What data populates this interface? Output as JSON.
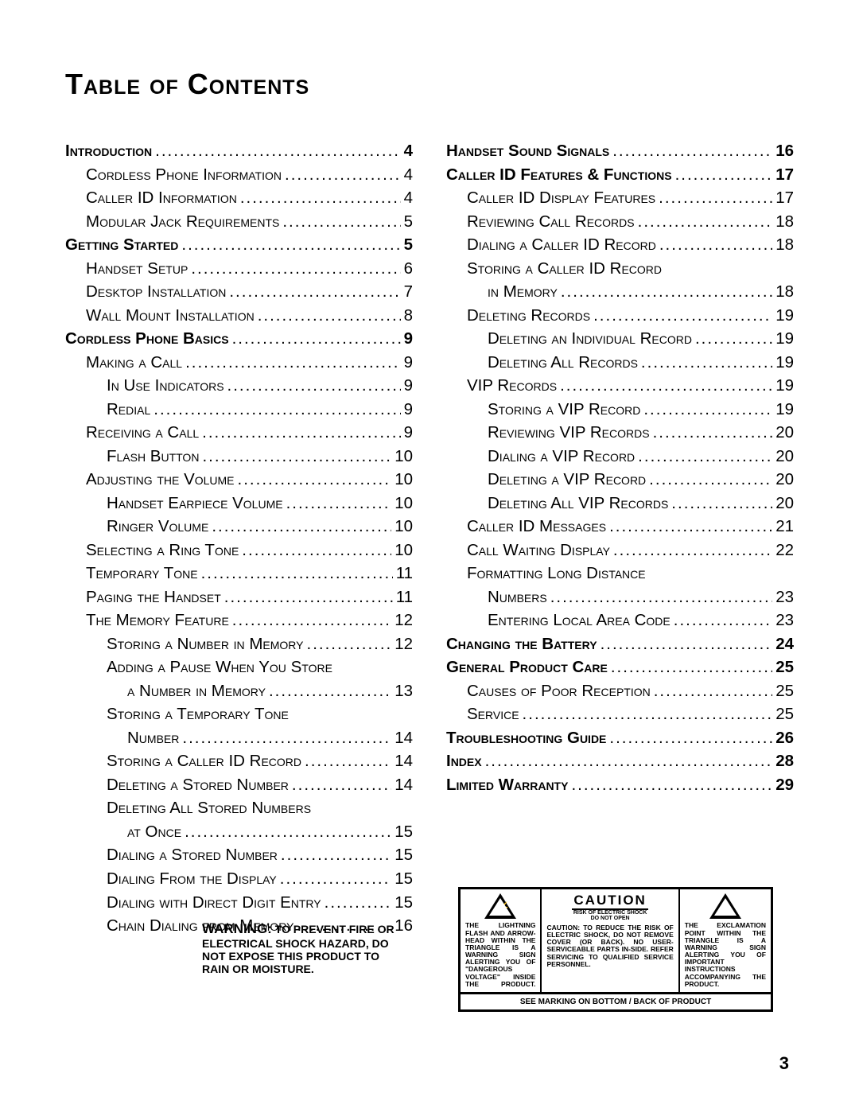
{
  "title": "Table of Contents",
  "page_number": "3",
  "toc_left": [
    {
      "level": 0,
      "label": "Introduction",
      "page": "4"
    },
    {
      "level": 1,
      "label": "Cordless Phone Information",
      "page": "4"
    },
    {
      "level": 1,
      "label": "Caller ID Information",
      "page": "4"
    },
    {
      "level": 1,
      "label": "Modular Jack Requirements",
      "page": "5"
    },
    {
      "level": 0,
      "label": "Getting Started",
      "page": "5"
    },
    {
      "level": 1,
      "label": "Handset Setup",
      "page": "6"
    },
    {
      "level": 1,
      "label": "Desktop Installation",
      "page": "7"
    },
    {
      "level": 1,
      "label": "Wall Mount Installation",
      "page": "8"
    },
    {
      "level": 0,
      "label": "Cordless Phone Basics",
      "page": "9"
    },
    {
      "level": 1,
      "label": "Making a Call",
      "page": "9"
    },
    {
      "level": 2,
      "label": "In Use Indicators",
      "page": "9"
    },
    {
      "level": 2,
      "label": "Redial",
      "page": "9"
    },
    {
      "level": 1,
      "label": "Receiving a Call",
      "page": "9"
    },
    {
      "level": 2,
      "label": "Flash Button",
      "page": "10"
    },
    {
      "level": 1,
      "label": "Adjusting the Volume",
      "page": "10"
    },
    {
      "level": 2,
      "label": "Handset Earpiece Volume",
      "page": "10"
    },
    {
      "level": 2,
      "label": "Ringer Volume",
      "page": "10"
    },
    {
      "level": 1,
      "label": "Selecting a Ring Tone",
      "page": "10"
    },
    {
      "level": 1,
      "label": "Temporary Tone",
      "page": "11"
    },
    {
      "level": 1,
      "label": "Paging the Handset",
      "page": "11"
    },
    {
      "level": 1,
      "label": "The Memory Feature",
      "page": "12"
    },
    {
      "level": 2,
      "label": "Storing a Number in Memory",
      "page": "12"
    },
    {
      "level": 2,
      "label": "Adding a Pause When You Store",
      "cont": true
    },
    {
      "level": 3,
      "label": "a Number in Memory",
      "page": "13"
    },
    {
      "level": 2,
      "label": "Storing a Temporary Tone",
      "cont": true
    },
    {
      "level": 3,
      "label": "Number",
      "page": "14"
    },
    {
      "level": 2,
      "label": "Storing a Caller ID Record",
      "page": "14"
    },
    {
      "level": 2,
      "label": "Deleting a Stored Number",
      "page": "14"
    },
    {
      "level": 2,
      "label": "Deleting All Stored Numbers",
      "cont": true
    },
    {
      "level": 3,
      "label": "at Once",
      "page": "15"
    },
    {
      "level": 2,
      "label": "Dialing a Stored Number",
      "page": "15"
    },
    {
      "level": 2,
      "label": "Dialing From the Display",
      "page": "15"
    },
    {
      "level": 2,
      "label": "Dialing with Direct Digit Entry",
      "page": "15"
    },
    {
      "level": 2,
      "label": "Chain Dialing from Memory",
      "page": "16"
    }
  ],
  "toc_right": [
    {
      "level": 0,
      "label": "Handset Sound Signals",
      "page": "16"
    },
    {
      "level": 0,
      "label": "Caller ID Features & Functions",
      "page": "17"
    },
    {
      "level": 1,
      "label": "Caller ID Display Features",
      "page": "17"
    },
    {
      "level": 1,
      "label": "Reviewing Call Records",
      "page": "18"
    },
    {
      "level": 1,
      "label": "Dialing a Caller ID Record",
      "page": "18"
    },
    {
      "level": 1,
      "label": "Storing a Caller ID Record",
      "cont": true
    },
    {
      "level": 2,
      "label": "in Memory",
      "page": "18"
    },
    {
      "level": 1,
      "label": "Deleting Records",
      "page": "19"
    },
    {
      "level": 2,
      "label": "Deleting an Individual Record",
      "page": "19"
    },
    {
      "level": 2,
      "label": "Deleting All Records",
      "page": "19"
    },
    {
      "level": 1,
      "label": "VIP Records",
      "page": "19"
    },
    {
      "level": 2,
      "label": "Storing a VIP Record",
      "page": "19"
    },
    {
      "level": 2,
      "label": "Reviewing VIP Records",
      "page": "20"
    },
    {
      "level": 2,
      "label": "Dialing a VIP Record",
      "page": "20"
    },
    {
      "level": 2,
      "label": "Deleting a VIP Record",
      "page": "20"
    },
    {
      "level": 2,
      "label": "Deleting All VIP Records",
      "page": "20"
    },
    {
      "level": 1,
      "label": "Caller ID Messages",
      "page": "21"
    },
    {
      "level": 1,
      "label": "Call Waiting Display",
      "page": "22"
    },
    {
      "level": 1,
      "label": "Formatting Long Distance",
      "cont": true
    },
    {
      "level": 2,
      "label": "Numbers",
      "page": "23"
    },
    {
      "level": 2,
      "label": "Entering Local Area Code",
      "page": "23"
    },
    {
      "level": 0,
      "label": "Changing the Battery",
      "page": "24"
    },
    {
      "level": 0,
      "label": "General Product Care",
      "page": "25"
    },
    {
      "level": 1,
      "label": "Causes of Poor Reception",
      "page": "25"
    },
    {
      "level": 1,
      "label": "Service",
      "page": "25"
    },
    {
      "level": 0,
      "label": "Troubleshooting Guide",
      "page": "26"
    },
    {
      "level": 0,
      "label": "Index",
      "page": "28"
    },
    {
      "level": 0,
      "label": "Limited Warranty",
      "page": "29"
    }
  ],
  "warning": {
    "lead": "WARNING:",
    "body": "TO PREVENT FIRE OR ELECTRICAL SHOCK HAZARD, DO NOT EXPOSE THIS PRODUCT TO RAIN OR MOISTURE."
  },
  "caution": {
    "word": "CAUTION",
    "sub1": "RISK OF ELECTRIC SHOCK",
    "sub2": "DO NOT OPEN",
    "left_text": "THE LIGHTNING FLASH AND ARROW-HEAD WITHIN THE TRIANGLE IS A WARNING SIGN ALERTING YOU OF \"DANGEROUS VOLTAGE\" INSIDE THE PRODUCT.",
    "mid_text": "CAUTION: TO REDUCE THE RISK OF ELECTRIC SHOCK, DO NOT REMOVE COVER (OR BACK). NO USER-SERVICEABLE PARTS IN-SIDE. REFER SERVICING TO QUALIFIED SERVICE PERSONNEL.",
    "right_text": "THE EXCLAMATION POINT WITHIN THE TRIANGLE IS A WARNING SIGN ALERTING YOU OF IMPORTANT INSTRUCTIONS ACCOMPANYING THE PRODUCT.",
    "bottom": "SEE MARKING ON BOTTOM / BACK OF PRODUCT"
  }
}
